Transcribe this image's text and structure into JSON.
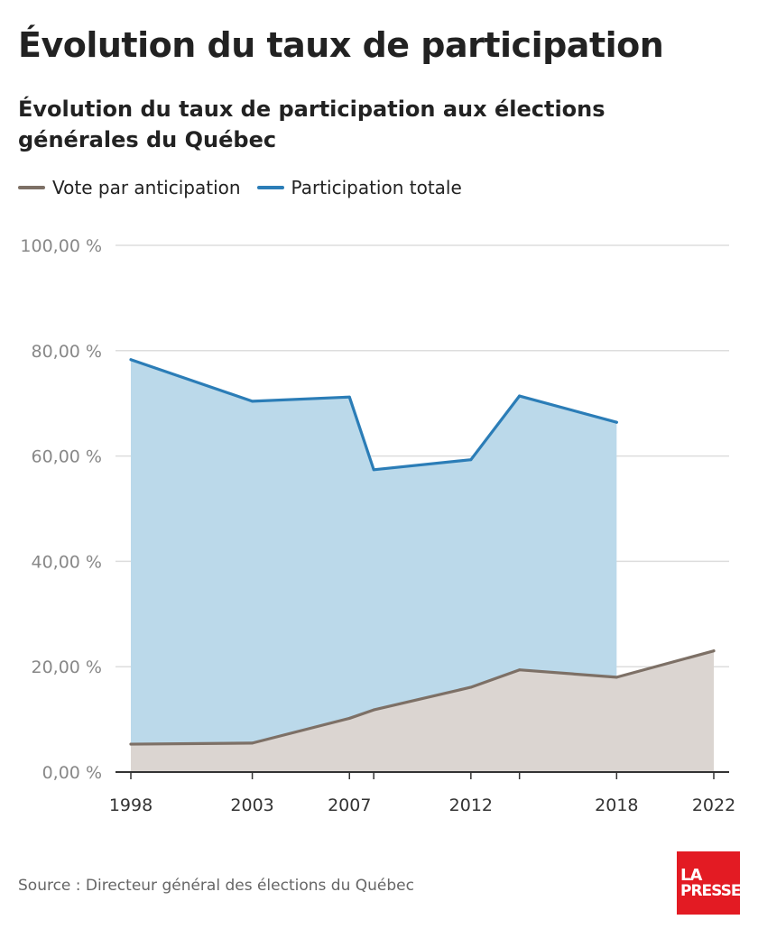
{
  "header": {
    "title": "Évolution du taux de participation",
    "subtitle": "Évolution du taux de participation aux élections générales du Québec"
  },
  "footer": {
    "source": "Source : Directeur général des élections du Québec",
    "logo_line1": "LA",
    "logo_line2": "PRESSE"
  },
  "colors": {
    "total_line": "#2b7db7",
    "total_fill": "#bbd9ea",
    "anticipation_line": "#7d7066",
    "anticipation_fill": "#dbd5d1",
    "grid": "#dddddd",
    "axis": "#333333",
    "tick_label": "#888888",
    "brand": "#e31b23"
  },
  "chart_data": {
    "type": "area",
    "title": "Évolution du taux de participation aux élections générales du Québec",
    "xlabel": "",
    "ylabel": "",
    "x_ticks": [
      "1998",
      "2003",
      "2007",
      "2012",
      "2018",
      "2022"
    ],
    "xlim": [
      1998,
      2022
    ],
    "y_ticks": [
      "0,00 %",
      "20,00 %",
      "40,00 %",
      "60,00 %",
      "80,00 %",
      "100,00 %"
    ],
    "ylim": [
      0,
      100
    ],
    "grid": true,
    "legend_position": "top-left",
    "series": [
      {
        "name": "Vote par anticipation",
        "x": [
          1998,
          2003,
          2007,
          2008,
          2012,
          2014,
          2018,
          2022
        ],
        "values": [
          5.3,
          5.5,
          10.2,
          11.8,
          16.1,
          19.4,
          18.0,
          23.0
        ]
      },
      {
        "name": "Participation totale",
        "x": [
          1998,
          2003,
          2007,
          2008,
          2012,
          2014,
          2018
        ],
        "values": [
          78.3,
          70.4,
          71.2,
          57.4,
          59.3,
          71.4,
          66.4
        ]
      }
    ]
  }
}
